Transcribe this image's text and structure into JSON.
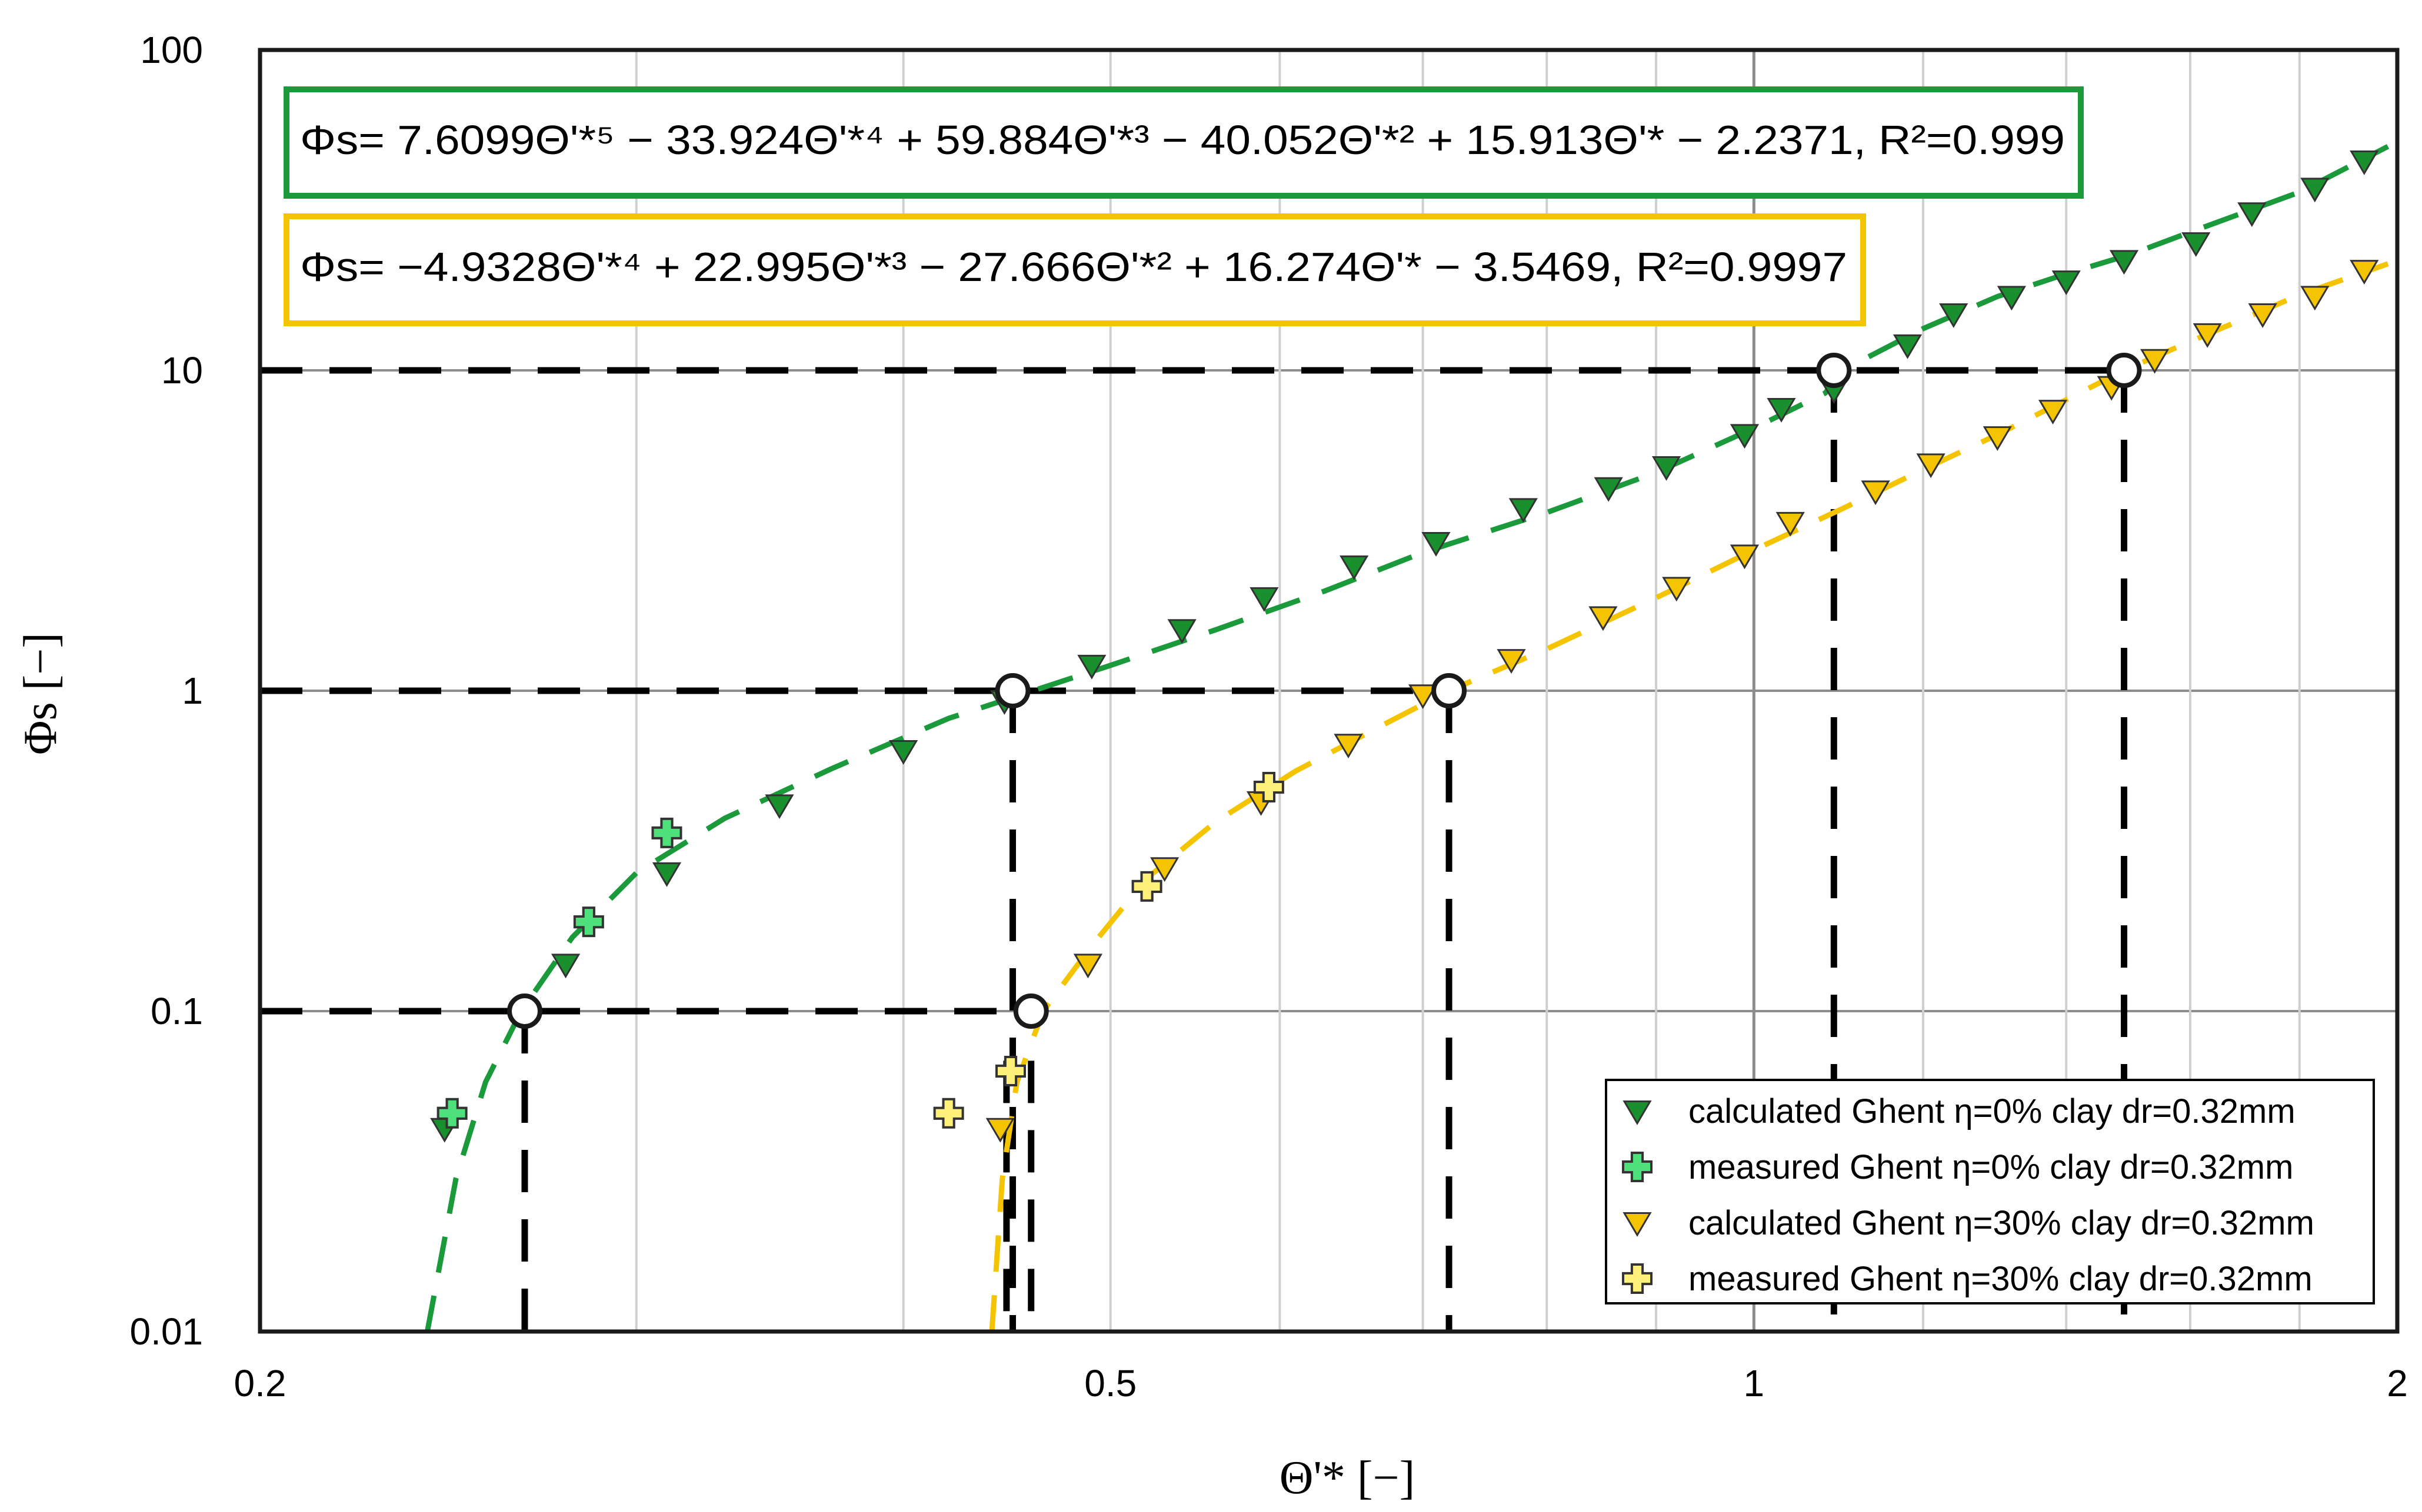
{
  "chart_data": {
    "type": "scatter",
    "xscale": "log",
    "yscale": "log",
    "xlim": [
      0.2,
      2
    ],
    "ylim": [
      0.01,
      100
    ],
    "xlabel": "Θ'* [−]",
    "ylabel": "Φs [−]",
    "xticks": [
      {
        "value": 0.2,
        "label": "0.2"
      },
      {
        "value": 0.5,
        "label": "0.5"
      },
      {
        "value": 1,
        "label": "1"
      },
      {
        "value": 2,
        "label": "2"
      }
    ],
    "yticks": [
      {
        "value": 0.01,
        "label": "0.01"
      },
      {
        "value": 0.1,
        "label": "0.1"
      },
      {
        "value": 1,
        "label": "1"
      },
      {
        "value": 10,
        "label": "10"
      },
      {
        "value": 100,
        "label": "100"
      }
    ],
    "grid": true,
    "equations": [
      {
        "text": "Φs= 7.6099Θ'*⁵ − 33.924Θ'*⁴ + 59.884Θ'*³ − 40.052Θ'*² + 15.913Θ'* − 2.2371, R²=0.999",
        "color": "#1a9a3a"
      },
      {
        "text": "Φs= −4.9328Θ'*⁴ + 22.995Θ'*³ − 27.666Θ'*² + 16.274Θ'* − 3.5469, R²=0.9997",
        "color": "#f5c400"
      }
    ],
    "legend_position": "bottom-right",
    "series": [
      {
        "name": "calculated Ghent η=0% clay dr=0.32mm",
        "marker": "triangle-down",
        "color": "#1a8f2e",
        "x": [
          0.244,
          0.278,
          0.31,
          0.35,
          0.4,
          0.446,
          0.49,
          0.54,
          0.59,
          0.65,
          0.71,
          0.78,
          0.855,
          0.91,
          0.99,
          1.03,
          1.09,
          1.18,
          1.24,
          1.32,
          1.4,
          1.49,
          1.61,
          1.71,
          1.83,
          1.93
        ],
        "y": [
          0.043,
          0.14,
          0.27,
          0.44,
          0.65,
          0.93,
          1.2,
          1.55,
          1.95,
          2.45,
          2.9,
          3.7,
          4.3,
          5.0,
          6.3,
          7.6,
          8.7,
          12,
          15,
          17,
          19,
          22,
          25,
          31,
          37,
          45
        ]
      },
      {
        "name": "measured Ghent η=0% clay dr=0.32mm",
        "marker": "plus",
        "color": "#4ee07a",
        "x": [
          0.246,
          0.285,
          0.31
        ],
        "y": [
          0.048,
          0.19,
          0.36
        ]
      },
      {
        "name": "calculated Ghent η=30% clay dr=0.32mm",
        "marker": "triangle-down",
        "color": "#f5c400",
        "x": [
          0.444,
          0.488,
          0.53,
          0.588,
          0.646,
          0.7,
          0.77,
          0.85,
          0.92,
          0.99,
          1.04,
          1.14,
          1.21,
          1.3,
          1.38,
          1.47,
          1.54,
          1.63,
          1.73,
          1.83,
          1.93
        ],
        "y": [
          0.043,
          0.14,
          0.28,
          0.45,
          0.68,
          0.97,
          1.25,
          1.7,
          2.1,
          2.65,
          3.35,
          4.2,
          5.1,
          6.2,
          7.5,
          8.9,
          10.8,
          13,
          15,
          17,
          20.5
        ]
      },
      {
        "name": "measured Ghent η=30% clay dr=0.32mm",
        "marker": "plus",
        "color": "#fff07a",
        "x": [
          0.42,
          0.449,
          0.52,
          0.593
        ],
        "y": [
          0.048,
          0.065,
          0.245,
          0.5
        ]
      }
    ],
    "fit_curves": [
      {
        "color": "#1a9a3a",
        "points": [
          [
            0.2395,
            0.01
          ],
          [
            0.247,
            0.03
          ],
          [
            0.255,
            0.06
          ],
          [
            0.265,
            0.1
          ],
          [
            0.28,
            0.17
          ],
          [
            0.3,
            0.27
          ],
          [
            0.33,
            0.4
          ],
          [
            0.37,
            0.57
          ],
          [
            0.42,
            0.82
          ],
          [
            0.46,
            1.0
          ],
          [
            0.5,
            1.2
          ],
          [
            0.56,
            1.55
          ],
          [
            0.63,
            2.05
          ],
          [
            0.7,
            2.7
          ],
          [
            0.8,
            3.6
          ],
          [
            0.9,
            4.8
          ],
          [
            1.0,
            6.6
          ],
          [
            1.08,
            8.5
          ],
          [
            1.1,
            10
          ],
          [
            1.2,
            13.5
          ],
          [
            1.3,
            17
          ],
          [
            1.4,
            20
          ],
          [
            1.5,
            23
          ],
          [
            1.6,
            27
          ],
          [
            1.8,
            36
          ],
          [
            1.98,
            50
          ]
        ]
      },
      {
        "color": "#f5c400",
        "points": [
          [
            0.44,
            0.01
          ],
          [
            0.445,
            0.03
          ],
          [
            0.452,
            0.06
          ],
          [
            0.465,
            0.1
          ],
          [
            0.49,
            0.16
          ],
          [
            0.52,
            0.26
          ],
          [
            0.56,
            0.39
          ],
          [
            0.61,
            0.56
          ],
          [
            0.67,
            0.78
          ],
          [
            0.72,
            1.0
          ],
          [
            0.8,
            1.35
          ],
          [
            0.9,
            1.95
          ],
          [
            1.0,
            2.75
          ],
          [
            1.1,
            3.7
          ],
          [
            1.2,
            4.9
          ],
          [
            1.3,
            6.3
          ],
          [
            1.4,
            8.1
          ],
          [
            1.49,
            10
          ],
          [
            1.6,
            12.3
          ],
          [
            1.7,
            14.6
          ],
          [
            1.8,
            17.2
          ],
          [
            1.98,
            21.5
          ]
        ]
      }
    ],
    "reference_points": [
      {
        "x": 0.266,
        "y": 0.1
      },
      {
        "x": 0.459,
        "y": 0.1
      },
      {
        "x": 0.45,
        "y": 1
      },
      {
        "x": 0.72,
        "y": 1
      },
      {
        "x": 1.09,
        "y": 10
      },
      {
        "x": 1.49,
        "y": 10
      }
    ],
    "reference_lines": {
      "horizontal": [
        {
          "y": 0.1,
          "x_end": 0.459
        },
        {
          "y": 1,
          "x_end": 0.72
        },
        {
          "y": 10,
          "x_end": 1.49
        }
      ],
      "vertical": [
        {
          "x": 0.266,
          "y_top": 0.1
        },
        {
          "x": 0.447,
          "y_top": 0.07
        },
        {
          "x": 0.459,
          "y_top": 0.07
        },
        {
          "x": 0.45,
          "y_top": 1
        },
        {
          "x": 0.72,
          "y_top": 1
        },
        {
          "x": 1.09,
          "y_top": 10
        },
        {
          "x": 1.49,
          "y_top": 10
        }
      ]
    }
  }
}
